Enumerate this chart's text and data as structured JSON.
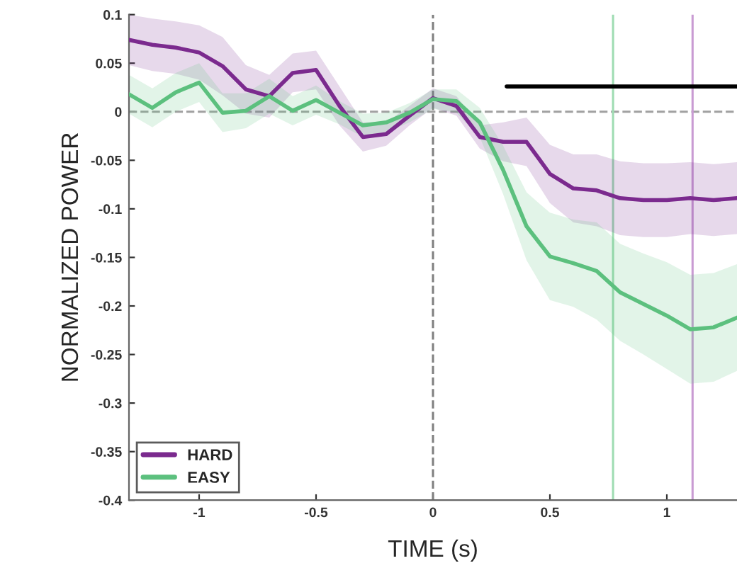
{
  "chart_data": {
    "type": "line",
    "xlabel": "TIME (s)",
    "ylabel": "NORMALIZED POWER",
    "x": [
      -1.3,
      -1.2,
      -1.1,
      -1.0,
      -0.9,
      -0.8,
      -0.7,
      -0.6,
      -0.5,
      -0.4,
      -0.3,
      -0.2,
      -0.1,
      0,
      0.1,
      0.2,
      0.3,
      0.4,
      0.5,
      0.6,
      0.7,
      0.8,
      0.9,
      1.0,
      1.1,
      1.2,
      1.3
    ],
    "series": [
      {
        "name": "HARD",
        "color": "#7b2a8e",
        "values": [
          0.074,
          0.069,
          0.066,
          0.061,
          0.047,
          0.023,
          0.016,
          0.04,
          0.043,
          0.006,
          -0.026,
          -0.023,
          -0.004,
          0.014,
          0.006,
          -0.026,
          -0.031,
          -0.031,
          -0.064,
          -0.079,
          -0.081,
          -0.089,
          -0.091,
          -0.091,
          -0.089,
          -0.091,
          -0.089
        ],
        "upper": [
          0.1,
          0.096,
          0.093,
          0.089,
          0.077,
          0.048,
          0.038,
          0.06,
          0.063,
          0.026,
          -0.011,
          -0.011,
          0.006,
          0.024,
          0.016,
          -0.014,
          -0.011,
          -0.006,
          -0.034,
          -0.044,
          -0.044,
          -0.051,
          -0.053,
          -0.053,
          -0.052,
          -0.054,
          -0.052
        ],
        "lower": [
          0.048,
          0.042,
          0.039,
          0.033,
          0.017,
          -0.002,
          -0.006,
          0.02,
          0.023,
          -0.014,
          -0.041,
          -0.035,
          -0.014,
          0.004,
          -0.004,
          -0.038,
          -0.051,
          -0.056,
          -0.094,
          -0.114,
          -0.118,
          -0.127,
          -0.129,
          -0.129,
          -0.126,
          -0.128,
          -0.126
        ]
      },
      {
        "name": "EASY",
        "color": "#5cc07e",
        "values": [
          0.018,
          0.004,
          0.02,
          0.03,
          -0.001,
          0.001,
          0.016,
          0.001,
          0.012,
          -0.001,
          -0.014,
          -0.011,
          -0.001,
          0.013,
          0.011,
          -0.011,
          -0.06,
          -0.118,
          -0.149,
          -0.156,
          -0.164,
          -0.186,
          -0.198,
          -0.21,
          -0.224,
          -0.222,
          -0.212
        ],
        "upper": [
          0.038,
          0.024,
          0.04,
          0.05,
          0.019,
          0.019,
          0.034,
          0.016,
          0.027,
          0.011,
          -0.002,
          -0.001,
          0.009,
          0.023,
          0.023,
          0.004,
          -0.035,
          -0.083,
          -0.104,
          -0.111,
          -0.114,
          -0.136,
          -0.146,
          -0.155,
          -0.168,
          -0.166,
          -0.157
        ],
        "lower": [
          -0.002,
          -0.016,
          0.0,
          0.01,
          -0.021,
          -0.017,
          -0.002,
          -0.014,
          -0.003,
          -0.013,
          -0.026,
          -0.021,
          -0.011,
          0.003,
          -0.001,
          -0.026,
          -0.085,
          -0.153,
          -0.194,
          -0.201,
          -0.214,
          -0.236,
          -0.25,
          -0.265,
          -0.28,
          -0.278,
          -0.267
        ]
      },
      {
        "color": "#000000",
        "x": [
          0.315,
          1.3
        ],
        "values": [
          0.026,
          0.026
        ]
      }
    ],
    "ref_lines": [
      {
        "axis": "x",
        "value": 0,
        "color": "#808080",
        "line_style": "dashed"
      },
      {
        "axis": "y",
        "value": 0,
        "color": "#a0a0a0",
        "line_style": "dashed"
      },
      {
        "axis": "x",
        "value": 0.77,
        "color": "#9fdcb2",
        "line_style": "solid"
      },
      {
        "axis": "x",
        "value": 1.11,
        "color": "#c99bd3",
        "line_style": "solid"
      }
    ],
    "xlim": [
      -1.3,
      1.3
    ],
    "xticks": [
      -1,
      -0.5,
      0,
      0.5,
      1
    ],
    "ylim": [
      -0.4,
      0.1
    ],
    "yticks": [
      0.1,
      0.05,
      0,
      -0.05,
      -0.1,
      -0.15,
      -0.2,
      -0.25,
      -0.3,
      -0.35,
      -0.4
    ],
    "legend": "bottom left",
    "grid": false,
    "line_style": "solid",
    "marker": "none"
  }
}
